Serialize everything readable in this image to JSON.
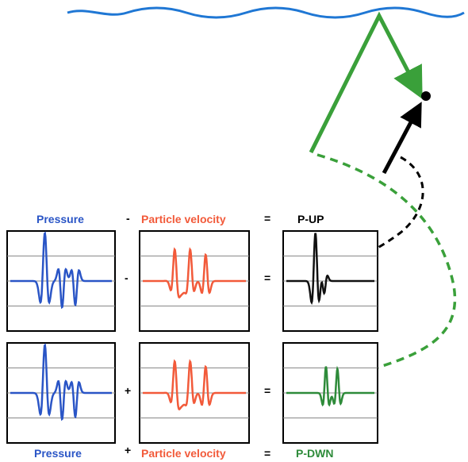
{
  "labels": {
    "pressure_top": "Pressure",
    "minus_top": "-",
    "particle_velocity_top": "Particle velocity",
    "equals_top": "=",
    "p_up": "P-UP",
    "pressure_bottom": "Pressure",
    "plus_bottom": "+",
    "particle_velocity_bottom": "Particle velocity",
    "equals_bottom": "=",
    "p_dwn": "P-DWN"
  },
  "operators": {
    "row1_minus": "-",
    "row1_equals": "=",
    "row2_plus": "+",
    "row2_equals": "="
  },
  "colors": {
    "sea_surface": "#1f77d4",
    "pressure": "#2a55c6",
    "particle_velocity": "#f25a3a",
    "p_up": "#111111",
    "p_dwn": "#2e8b3a",
    "ray_green": "#3aa03a",
    "ray_black": "#000000",
    "grid": "#888888"
  }
}
